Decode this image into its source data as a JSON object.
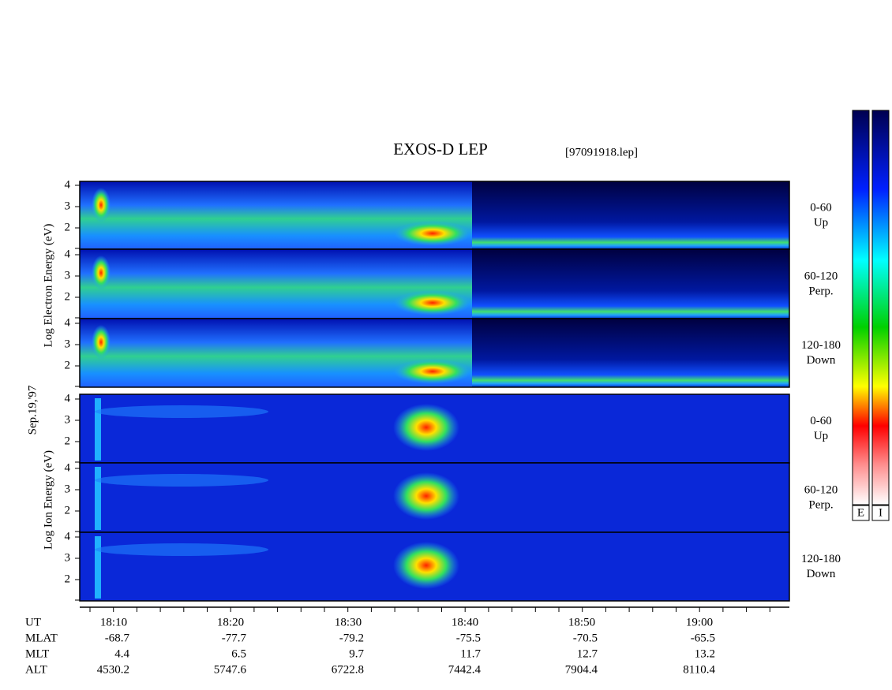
{
  "title": "EXOS-D LEP",
  "file": "[97091918.lep]",
  "date": "Sep.19,'97",
  "electron_ylabel": "Log Electron Energy (eV)",
  "ion_ylabel": "Log Ion Energy (eV)",
  "yticks": [
    4,
    3,
    2
  ],
  "pitch_labels": [
    [
      "0-60",
      "Up"
    ],
    [
      "60-120",
      "Perp."
    ],
    [
      "120-180",
      "Down"
    ]
  ],
  "colorbar_labels": [
    "E",
    "I"
  ],
  "footer": [
    {
      "label": "UT",
      "values": [
        "18:10",
        "18:20",
        "18:30",
        "18:40",
        "18:50",
        "19:00"
      ]
    },
    {
      "label": "MLAT",
      "values": [
        -68.7,
        -77.7,
        -79.2,
        -75.5,
        -70.5,
        -65.5
      ]
    },
    {
      "label": "MLT",
      "values": [
        4.4,
        6.5,
        9.7,
        11.7,
        12.7,
        13.2
      ]
    },
    {
      "label": "ALT",
      "values": [
        4530.2,
        5747.6,
        6722.8,
        7442.4,
        7904.4,
        8110.4
      ]
    }
  ]
}
